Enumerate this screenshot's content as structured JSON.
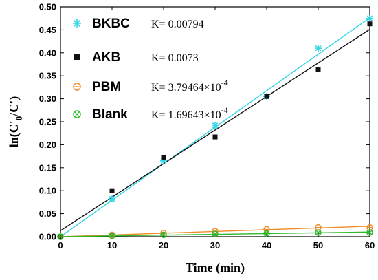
{
  "chart_data": {
    "type": "scatter",
    "xlabel": "Time (min)",
    "ylabel": "ln(C'0/C')",
    "xlim": [
      0,
      60
    ],
    "ylim": [
      0,
      0.5
    ],
    "x_ticks": [
      0,
      10,
      20,
      30,
      40,
      50,
      60
    ],
    "y_ticks": [
      0.0,
      0.05,
      0.1,
      0.15,
      0.2,
      0.25,
      0.3,
      0.35,
      0.4,
      0.45,
      0.5
    ],
    "grid": false,
    "legend_position": "top-left",
    "series": [
      {
        "name": "BKBC",
        "k_label": "K= 0.00794",
        "marker": "star",
        "color": "#33d6e6",
        "x": [
          0,
          10,
          20,
          30,
          40,
          50,
          60
        ],
        "y": [
          0.0,
          0.082,
          0.165,
          0.242,
          0.305,
          0.41,
          0.475
        ],
        "fit": {
          "intercept": 0.0,
          "slope": 0.00794
        }
      },
      {
        "name": "AKB",
        "k_label": "K= 0.0073",
        "marker": "square",
        "color": "#111111",
        "x": [
          0,
          10,
          20,
          30,
          40,
          50,
          60
        ],
        "y": [
          0.0,
          0.1,
          0.172,
          0.217,
          0.305,
          0.363,
          0.463
        ],
        "fit": {
          "intercept": 0.013,
          "slope": 0.0073
        }
      },
      {
        "name": "PBM",
        "k_label_base": "K= 3.79464×10",
        "k_label_exp": "-4",
        "marker": "circle",
        "color": "#f08a24",
        "x": [
          0,
          10,
          20,
          30,
          40,
          50,
          60
        ],
        "y": [
          0.0,
          0.004,
          0.008,
          0.012,
          0.016,
          0.02,
          0.02
        ],
        "fit": {
          "intercept": 0.0,
          "slope": 0.000379464
        }
      },
      {
        "name": "Blank",
        "k_label_base": "K= 1.69643×10",
        "k_label_exp": "-4",
        "marker": "circle-x",
        "color": "#2db82d",
        "x": [
          0,
          10,
          20,
          30,
          40,
          50,
          60
        ],
        "y": [
          0.0,
          0.002,
          0.004,
          0.006,
          0.007,
          0.009,
          0.009
        ],
        "fit": {
          "intercept": 0.0,
          "slope": 0.000169643
        }
      }
    ]
  }
}
